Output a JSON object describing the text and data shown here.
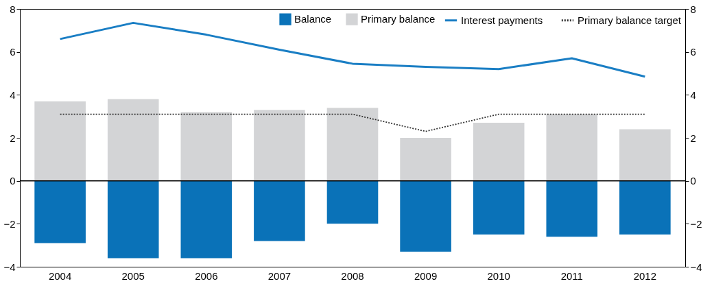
{
  "chart_data": {
    "type": "bar",
    "categories": [
      "2004",
      "2005",
      "2006",
      "2007",
      "2008",
      "2009",
      "2010",
      "2011",
      "2012"
    ],
    "series": [
      {
        "name": "Balance",
        "color": "#0a72b8",
        "values": [
          -2.9,
          -3.6,
          -3.6,
          -2.8,
          -2.0,
          -3.3,
          -2.5,
          -2.6,
          -2.5
        ]
      },
      {
        "name": "Primary balance",
        "color": "#d3d4d6",
        "values": [
          3.7,
          3.8,
          3.2,
          3.3,
          3.4,
          2.0,
          2.7,
          3.1,
          2.4
        ]
      },
      {
        "name": "Interest payments",
        "type": "line",
        "color": "#1a7ec4",
        "line_style": "solid",
        "values": [
          6.6,
          7.35,
          6.8,
          6.1,
          5.45,
          5.3,
          5.2,
          5.7,
          4.85
        ]
      },
      {
        "name": "Primary balance target",
        "type": "line",
        "color": "#333333",
        "line_style": "dotted",
        "values": [
          3.1,
          3.1,
          3.1,
          3.1,
          3.1,
          2.3,
          3.1,
          3.1,
          3.1
        ]
      }
    ],
    "ylim": [
      -4,
      8
    ],
    "yticks": [
      -4,
      -2,
      0,
      2,
      4,
      6,
      8
    ],
    "y2lim": [
      -4,
      8
    ],
    "y2ticks": [
      -4,
      -2,
      0,
      2,
      4,
      6,
      8
    ],
    "ref_lines": [
      {
        "axis": "y",
        "value": 0,
        "color": "#000000"
      }
    ],
    "grid": false,
    "legend": "top right",
    "stacked": true
  }
}
